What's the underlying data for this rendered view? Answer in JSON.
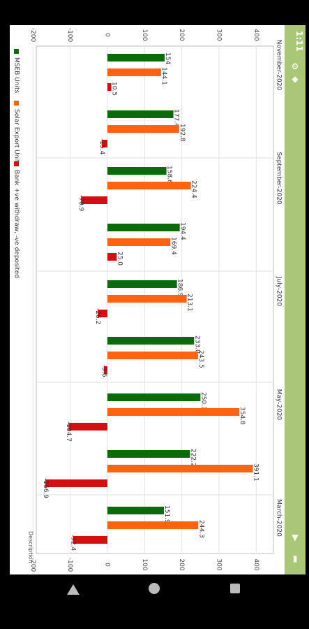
{
  "status": {
    "time": "1:11"
  },
  "icons": [
    "gear-icon",
    "shield-icon",
    "wifi-icon",
    "battery-icon"
  ],
  "chart_data": {
    "type": "bar",
    "orientation": "horizontal",
    "categories": [
      "November-2020",
      "",
      "September-2020",
      "",
      "July-2020",
      "",
      "May-2020",
      "",
      "March-2020"
    ],
    "series": [
      {
        "name": "MSEB Units",
        "color": "#0b6b0b",
        "values": [
          154.0,
          177.4,
          158.6,
          194.4,
          186.9,
          233.0,
          250.1,
          222.2,
          151.9
        ]
      },
      {
        "name": "Solar Export Units",
        "color": "#ff6310",
        "values": [
          144.1,
          192.8,
          224.4,
          169.4,
          213.1,
          243.5,
          354.8,
          391.1,
          244.3
        ]
      },
      {
        "name": "Bank +ve withdraw, -ve deposited",
        "color": "#d50f0f",
        "values": [
          10.5,
          -15.4,
          -70.9,
          25.0,
          -26.2,
          -9.6,
          -104.7,
          -166.9,
          -92.4
        ]
      }
    ],
    "data_labels": [
      [
        "154",
        "177.4",
        "158.6",
        "194.4",
        "186.9",
        "233.0",
        "250.1",
        "222.2",
        "151.9"
      ],
      [
        "144.1",
        "192.8",
        "224.4",
        "169.4",
        "213.1",
        "243.5",
        "354.8",
        "391.1",
        "244.3"
      ],
      [
        "10.5",
        "-15.4",
        "-70.9",
        "25.0",
        "-26.2",
        "-9.6",
        "-104.7",
        "-166.9",
        "-92.4"
      ]
    ],
    "ylim": [
      -200,
      400
    ],
    "ticks": [
      "-200",
      "-100",
      "0",
      "100",
      "200",
      "300",
      "400"
    ],
    "description": "Description",
    "legend": "bottom-left",
    "grid": true
  }
}
